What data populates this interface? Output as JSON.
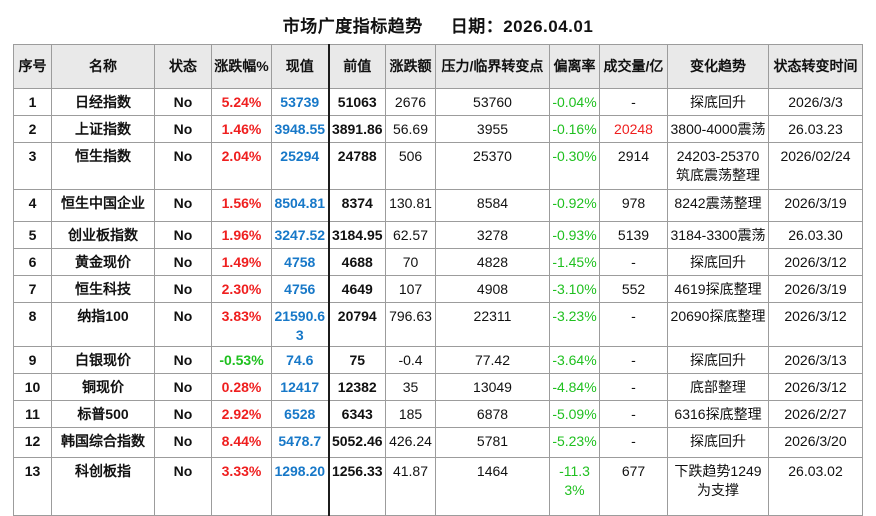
{
  "title": "市场广度指标趋势",
  "date_label": "日期：2026.04.01",
  "columns": [
    "序号",
    "名称",
    "状态",
    "涨跌幅%",
    "现值",
    "前值",
    "涨跌额",
    "压力/临界转变点",
    "偏离率",
    "成交量/亿",
    "变化趋势",
    "状态转变时间"
  ],
  "colors": {
    "up_red": "#ef1f1f",
    "down_green": "#1fc01f",
    "current_blue": "#1778c8",
    "header_bg": "#e9e9e9",
    "grid_line": "#9c9c9c"
  },
  "rows": [
    {
      "seq": "1",
      "name": "日经指数",
      "status": "No",
      "pct": "5.24%",
      "current": "53739",
      "prev": "51063",
      "change": "2676",
      "pivot": "53760",
      "deviation": "-0.04%",
      "volume": "-",
      "trend": "探底回升",
      "date": "2026/3/3"
    },
    {
      "seq": "2",
      "name": "上证指数",
      "status": "No",
      "pct": "1.46%",
      "current": "3948.55",
      "prev": "3891.86",
      "change": "56.69",
      "pivot": "3955",
      "deviation": "-0.16%",
      "volume": "20248",
      "volume_hot": true,
      "trend": "3800-4000震荡",
      "date": "26.03.23"
    },
    {
      "seq": "3",
      "name": "恒生指数",
      "status": "No",
      "pct": "2.04%",
      "current": "25294",
      "prev": "24788",
      "change": "506",
      "pivot": "25370",
      "deviation": "-0.30%",
      "volume": "2914",
      "trend": "24203-25370筑底震荡整理",
      "date": "2026/02/24"
    },
    {
      "seq": "4",
      "name": "恒生中国企业",
      "status": "No",
      "pct": "1.56%",
      "current": "8504.81",
      "prev": "8374",
      "change": "130.81",
      "pivot": "8584",
      "deviation": "-0.92%",
      "volume": "978",
      "trend": "8242震荡整理",
      "date": "2026/3/19"
    },
    {
      "seq": "5",
      "name": "创业板指数",
      "status": "No",
      "pct": "1.96%",
      "current": "3247.52",
      "prev": "3184.95",
      "change": "62.57",
      "pivot": "3278",
      "deviation": "-0.93%",
      "volume": "5139",
      "trend": "3184-3300震荡",
      "date": "26.03.30"
    },
    {
      "seq": "6",
      "name": "黄金现价",
      "status": "No",
      "pct": "1.49%",
      "current": "4758",
      "prev": "4688",
      "change": "70",
      "pivot": "4828",
      "deviation": "-1.45%",
      "volume": "-",
      "trend": "探底回升",
      "date": "2026/3/12"
    },
    {
      "seq": "7",
      "name": "恒生科技",
      "status": "No",
      "pct": "2.30%",
      "current": "4756",
      "prev": "4649",
      "change": "107",
      "pivot": "4908",
      "deviation": "-3.10%",
      "volume": "552",
      "trend": "4619探底整理",
      "date": "2026/3/19"
    },
    {
      "seq": "8",
      "name": "纳指100",
      "status": "No",
      "pct": "3.83%",
      "current": "21590.63",
      "prev": "20794",
      "change": "796.63",
      "pivot": "22311",
      "deviation": "-3.23%",
      "volume": "-",
      "trend": "20690探底整理",
      "date": "2026/3/12"
    },
    {
      "seq": "9",
      "name": "白银现价",
      "status": "No",
      "pct": "-0.53%",
      "current": "74.6",
      "prev": "75",
      "change": "-0.4",
      "pivot": "77.42",
      "deviation": "-3.64%",
      "volume": "-",
      "trend": "探底回升",
      "date": "2026/3/13"
    },
    {
      "seq": "10",
      "name": "铜现价",
      "status": "No",
      "pct": "0.28%",
      "current": "12417",
      "prev": "12382",
      "change": "35",
      "pivot": "13049",
      "deviation": "-4.84%",
      "volume": "-",
      "trend": "底部整理",
      "date": "2026/3/12"
    },
    {
      "seq": "11",
      "name": "标普500",
      "status": "No",
      "pct": "2.92%",
      "current": "6528",
      "prev": "6343",
      "change": "185",
      "pivot": "6878",
      "deviation": "-5.09%",
      "volume": "-",
      "trend": "6316探底整理",
      "date": "2026/2/27"
    },
    {
      "seq": "12",
      "name": "韩国综合指数",
      "status": "No",
      "pct": "8.44%",
      "current": "5478.7",
      "prev": "5052.46",
      "change": "426.24",
      "pivot": "5781",
      "deviation": "-5.23%",
      "volume": "-",
      "trend": "探底回升",
      "date": "2026/3/20"
    },
    {
      "seq": "13",
      "name": "科创板指",
      "status": "No",
      "pct": "3.33%",
      "current": "1298.20",
      "prev": "1256.33",
      "change": "41.87",
      "pivot": "1464",
      "deviation": "-11.33%",
      "volume": "677",
      "trend": "下跌趋势1249为支撑",
      "date": "26.03.02"
    }
  ]
}
